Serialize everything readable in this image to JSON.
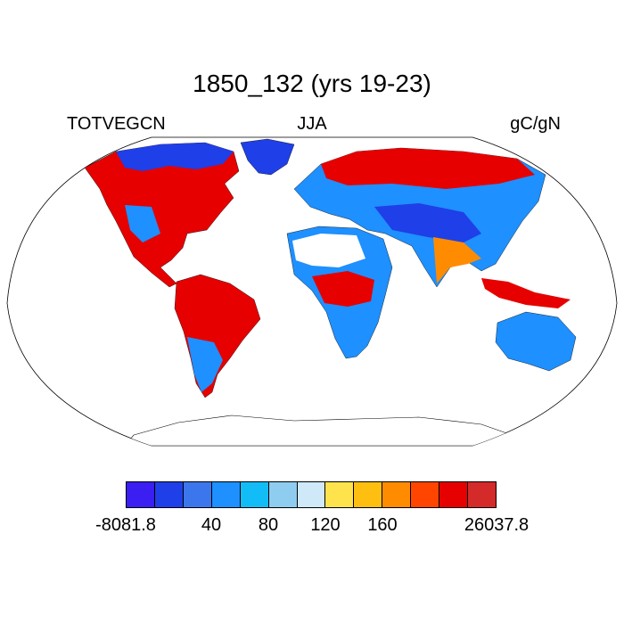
{
  "title": "1850_132 (yrs 19-23)",
  "subtitle_left": "TOTVEGCN",
  "subtitle_center": "JJA",
  "subtitle_right": "gC/gN",
  "colorbar": {
    "colors": [
      "#3b1ef2",
      "#1f3fe8",
      "#3b76ec",
      "#1e90ff",
      "#12bdf7",
      "#8ecdf0",
      "#cfe9f9",
      "#ffe34d",
      "#ffbf10",
      "#ff8c00",
      "#ff4500",
      "#e60000",
      "#d42a2a"
    ],
    "labels": [
      {
        "text": "-8081.8",
        "boundary": 0
      },
      {
        "text": "40",
        "boundary": 3
      },
      {
        "text": "80",
        "boundary": 5
      },
      {
        "text": "120",
        "boundary": 7
      },
      {
        "text": "160",
        "boundary": 9
      },
      {
        "text": "26037.8",
        "boundary": 13
      }
    ]
  },
  "regions": [
    {
      "name": "north-america",
      "color": "#e60000"
    },
    {
      "name": "greenland",
      "color": "#1f3fe8"
    },
    {
      "name": "south-america",
      "color": "#e60000"
    },
    {
      "name": "africa",
      "color": "#1e90ff"
    },
    {
      "name": "eurasia",
      "color": "#1e90ff"
    },
    {
      "name": "australia",
      "color": "#1e90ff"
    },
    {
      "name": "antarctica",
      "color": "#ffffff"
    }
  ]
}
